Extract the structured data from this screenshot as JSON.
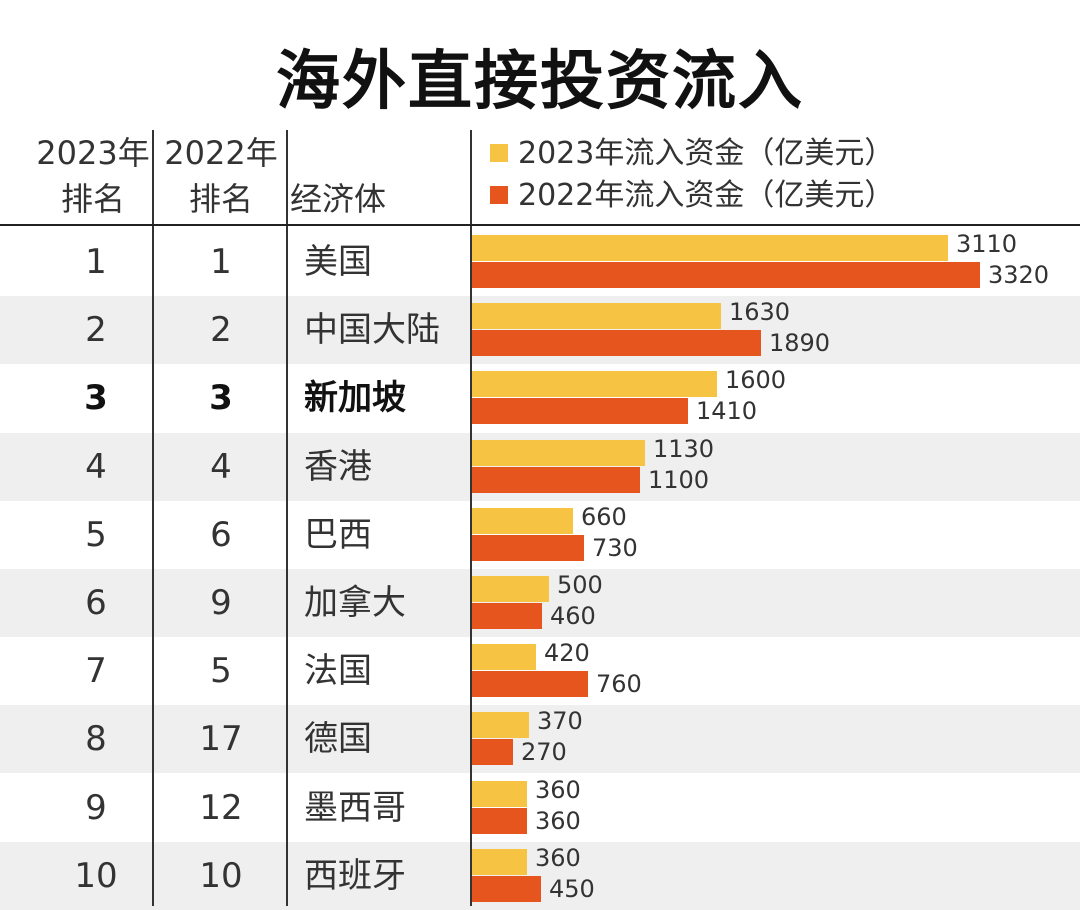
{
  "title": "海外直接投资流入",
  "headers": {
    "rank_2023": [
      "2023年",
      "排名"
    ],
    "rank_2022": [
      "2022年",
      "排名"
    ],
    "economy": "经济体"
  },
  "legend": [
    {
      "label": "2023年流入资金（亿美元）",
      "color": "#f7c343"
    },
    {
      "label": "2022年流入资金（亿美元）",
      "color": "#e6551e"
    }
  ],
  "chart_data": {
    "type": "bar",
    "orientation": "horizontal",
    "title": "海外直接投资流入",
    "categories": [
      "美国",
      "中国大陆",
      "新加坡",
      "香港",
      "巴西",
      "加拿大",
      "法国",
      "德国",
      "墨西哥",
      "西班牙"
    ],
    "rank_2023": [
      "1",
      "2",
      "3",
      "4",
      "5",
      "6",
      "7",
      "8",
      "9",
      "10"
    ],
    "rank_2022": [
      "1",
      "2",
      "3",
      "4",
      "6",
      "9",
      "5",
      "17",
      "12",
      "10"
    ],
    "highlighted_category": "新加坡",
    "series": [
      {
        "name": "2023年流入资金（亿美元）",
        "color": "#f7c343",
        "values": [
          3110,
          1630,
          1600,
          1130,
          660,
          500,
          420,
          370,
          360,
          360
        ]
      },
      {
        "name": "2022年流入资金（亿美元）",
        "color": "#e6551e",
        "values": [
          3320,
          1890,
          1410,
          1100,
          730,
          460,
          760,
          270,
          360,
          450
        ]
      }
    ],
    "xlim": [
      0,
      3320
    ],
    "grid": false,
    "legend_position": "top"
  }
}
